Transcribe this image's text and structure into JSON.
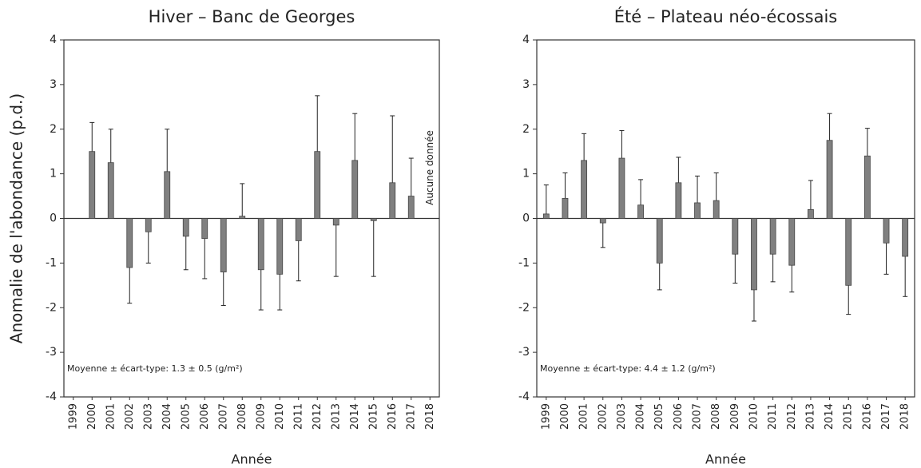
{
  "chart_data": [
    {
      "type": "bar",
      "title": "Hiver – Banc de Georges",
      "ylabel": "Anomalie de l'abondance (p.d.)",
      "xlabel": "Année",
      "note": "Moyenne ± écart-type: 1.3 ± 0.5 (g/m²)",
      "annotation": "Aucune donnée",
      "categories": [
        "1999",
        "2000",
        "2001",
        "2002",
        "2003",
        "2004",
        "2005",
        "2006",
        "2007",
        "2008",
        "2009",
        "2010",
        "2011",
        "2012",
        "2013",
        "2014",
        "2015",
        "2016",
        "2017",
        "2018"
      ],
      "values": [
        null,
        1.5,
        1.25,
        -1.1,
        -0.3,
        1.05,
        -0.4,
        -0.45,
        -1.2,
        0.05,
        -1.15,
        -1.25,
        -0.5,
        1.5,
        -0.15,
        1.3,
        -0.05,
        0.8,
        0.5,
        null
      ],
      "errors": [
        null,
        0.65,
        0.75,
        0.8,
        0.7,
        0.95,
        0.75,
        0.9,
        0.75,
        0.73,
        0.9,
        0.8,
        0.9,
        1.25,
        1.15,
        1.05,
        1.25,
        1.5,
        0.85,
        null
      ],
      "color": "#808080",
      "ylim": [
        -4,
        4
      ],
      "yticks": [
        -4,
        -3,
        -2,
        -1,
        0,
        1,
        2,
        3,
        4
      ]
    },
    {
      "type": "bar",
      "title": "Été – Plateau néo-écossais",
      "xlabel": "Année",
      "note": "Moyenne ± écart-type: 4.4 ± 1.2 (g/m²)",
      "categories": [
        "1999",
        "2000",
        "2001",
        "2002",
        "2003",
        "2004",
        "2005",
        "2006",
        "2007",
        "2008",
        "2009",
        "2010",
        "2011",
        "2012",
        "2013",
        "2014",
        "2015",
        "2016",
        "2017",
        "2018"
      ],
      "values": [
        0.1,
        0.45,
        1.3,
        -0.1,
        1.35,
        0.3,
        -1.0,
        0.8,
        0.35,
        0.4,
        -0.8,
        -1.6,
        -0.8,
        -1.05,
        0.2,
        1.75,
        -1.5,
        1.4,
        -0.55,
        -0.85
      ],
      "errors": [
        0.65,
        0.57,
        0.6,
        0.55,
        0.62,
        0.57,
        0.6,
        0.57,
        0.6,
        0.62,
        0.65,
        0.7,
        0.62,
        0.6,
        0.65,
        0.6,
        0.65,
        0.62,
        0.7,
        0.9
      ],
      "color": "#808080",
      "ylim": [
        -4,
        4
      ],
      "yticks": [
        -4,
        -3,
        -2,
        -1,
        0,
        1,
        2,
        3,
        4
      ]
    }
  ]
}
